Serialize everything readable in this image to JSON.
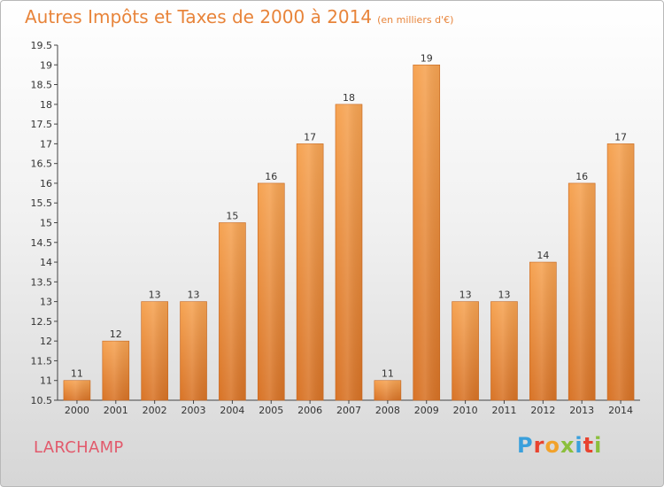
{
  "header": {
    "title": "Autres Impôts et Taxes de 2000 à 2014",
    "unit": "(en milliers d'€)"
  },
  "commune": "LARCHAMP",
  "logo": {
    "text": "Proxiti",
    "letters": [
      {
        "ch": "P",
        "color": "#3aa0dc"
      },
      {
        "ch": "r",
        "color": "#e8432f"
      },
      {
        "ch": "o",
        "color": "#f2a22b"
      },
      {
        "ch": "x",
        "color": "#8bbf3c"
      },
      {
        "ch": "i",
        "color": "#3aa0dc"
      },
      {
        "ch": "t",
        "color": "#e8432f"
      },
      {
        "ch": "i",
        "color": "#8bbf3c"
      }
    ]
  },
  "chart_data": {
    "type": "bar",
    "title": "Autres Impôts et Taxes de 2000 à 2014",
    "subtitle": "(en milliers d'€)",
    "xlabel": "",
    "ylabel": "",
    "categories": [
      "2000",
      "2001",
      "2002",
      "2003",
      "2004",
      "2005",
      "2006",
      "2007",
      "2008",
      "2009",
      "2010",
      "2011",
      "2012",
      "2013",
      "2014"
    ],
    "values": [
      11,
      12,
      13,
      13,
      15,
      16,
      17,
      18,
      11,
      19,
      13,
      13,
      14,
      16,
      17
    ],
    "data_labels": [
      "11",
      "12",
      "13",
      "13",
      "15",
      "16",
      "17",
      "18",
      "11",
      "19",
      "13",
      "13",
      "14",
      "16",
      "17"
    ],
    "ylim": [
      10.5,
      19.5
    ],
    "yticks": [
      "10.5",
      "11",
      "11.5",
      "12",
      "12.5",
      "13",
      "13.5",
      "14",
      "14.5",
      "15",
      "15.5",
      "16",
      "16.5",
      "17",
      "17.5",
      "18",
      "18.5",
      "19",
      "19.5"
    ],
    "grid": false,
    "bar_color": "#f0913a"
  }
}
